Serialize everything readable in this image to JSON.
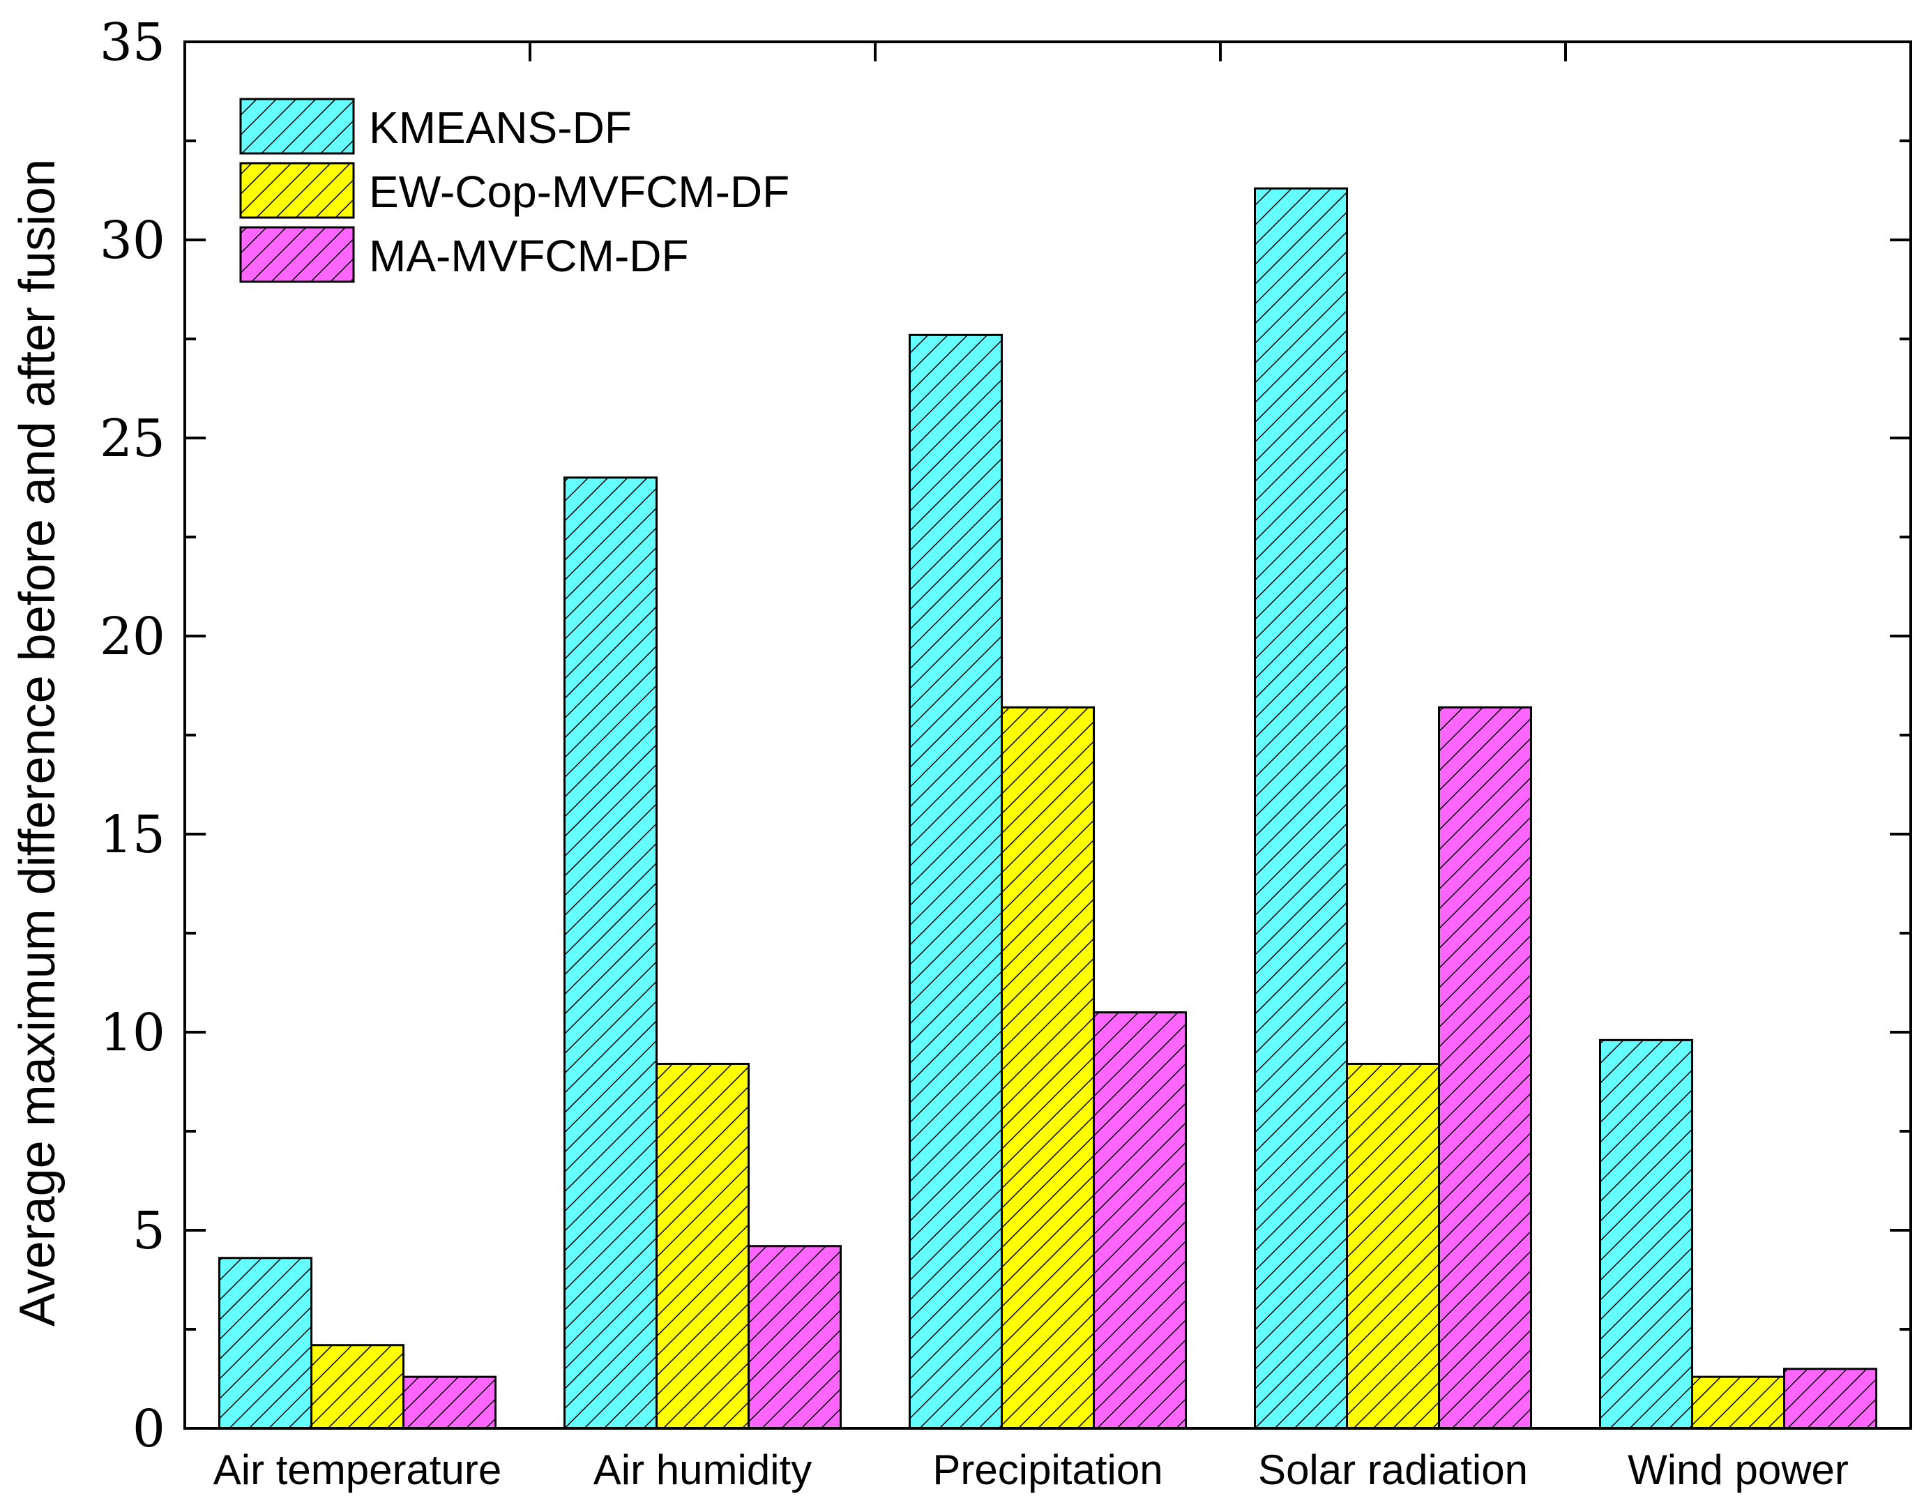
{
  "chart_data": {
    "type": "bar",
    "title": "",
    "xlabel": "",
    "ylabel": "Average maximum difference before and after fusion",
    "ylim": [
      0,
      35
    ],
    "yticks": [
      0,
      5,
      10,
      15,
      20,
      25,
      30,
      35
    ],
    "ytick_labels": [
      "0",
      "5",
      "10",
      "15",
      "20",
      "25",
      "30",
      "35"
    ],
    "grid": false,
    "legend_position": "top-left",
    "categories": [
      "Air temperature",
      "Air humidity",
      "Precipitation",
      "Solar radiation",
      "Wind power"
    ],
    "series": [
      {
        "name": "KMEANS-DF",
        "color": "#66FFFF",
        "values": [
          4.3,
          24.0,
          27.6,
          31.3,
          9.8
        ]
      },
      {
        "name": "EW-Cop-MVFCM-DF",
        "color": "#FFFF00",
        "values": [
          2.1,
          9.2,
          18.2,
          9.2,
          1.3
        ]
      },
      {
        "name": "MA-MVFCM-DF",
        "color": "#FF66FF",
        "values": [
          1.3,
          4.6,
          10.5,
          18.2,
          1.5
        ]
      }
    ]
  }
}
